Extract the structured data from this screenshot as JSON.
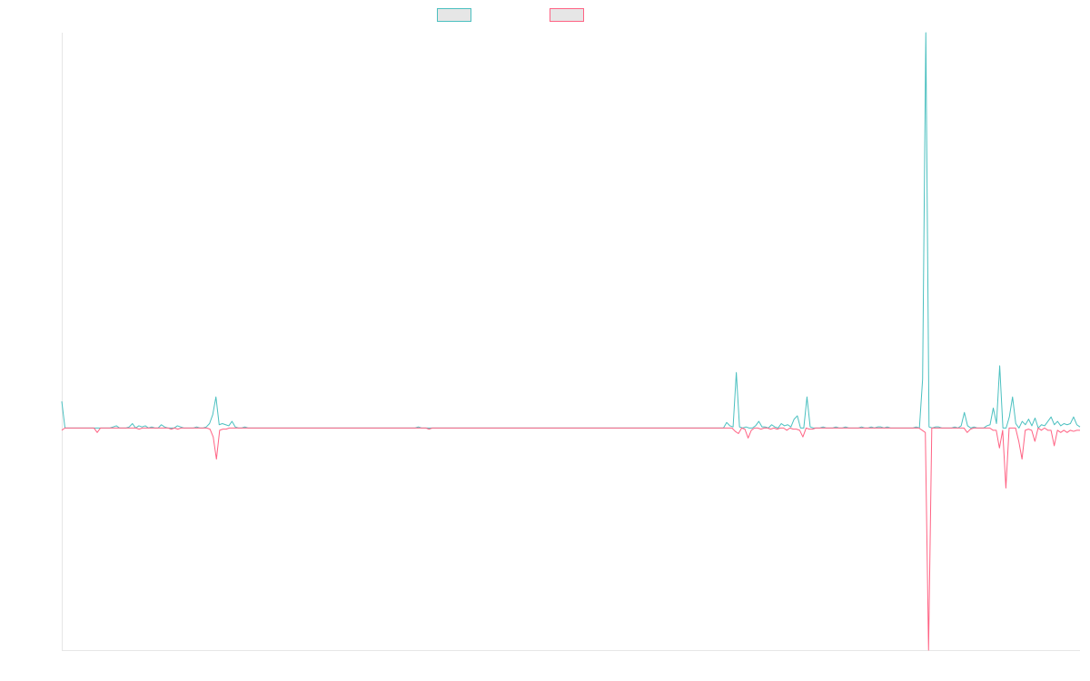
{
  "chart_data": {
    "type": "line",
    "title": "",
    "xlabel": "",
    "ylabel": "",
    "ylim": [
      -1,
      1.78
    ],
    "grid": false,
    "legend": "top",
    "series": [
      {
        "color": "#4bc0c0",
        "values": [
          0.12,
          0,
          0,
          0,
          0,
          0,
          0,
          0,
          0,
          0,
          0,
          0,
          0,
          0,
          0,
          0,
          0.005,
          0.01,
          0,
          0,
          0,
          0.005,
          0.02,
          0,
          0.01,
          0.005,
          0.01,
          0,
          0.005,
          0,
          0,
          0.015,
          0.005,
          0,
          0,
          0,
          0.01,
          0.005,
          0,
          0,
          0,
          0,
          0.005,
          0,
          0,
          0.005,
          0.02,
          0.06,
          0.14,
          0.015,
          0.02,
          0.015,
          0.01,
          0.03,
          0.005,
          0,
          0,
          0.005,
          0,
          0,
          0,
          0,
          0,
          0,
          0,
          0,
          0,
          0,
          0,
          0,
          0,
          0,
          0,
          0,
          0,
          0,
          0,
          0,
          0,
          0,
          0,
          0,
          0,
          0,
          0,
          0,
          0,
          0,
          0,
          0,
          0,
          0,
          0,
          0,
          0,
          0,
          0,
          0,
          0,
          0,
          0,
          0,
          0,
          0,
          0,
          0,
          0,
          0,
          0,
          0,
          0,
          0.005,
          0,
          0,
          0,
          0,
          0,
          0,
          0,
          0,
          0,
          0,
          0,
          0,
          0,
          0,
          0,
          0,
          0,
          0,
          0,
          0,
          0,
          0,
          0,
          0,
          0,
          0,
          0,
          0,
          0,
          0,
          0,
          0,
          0,
          0,
          0,
          0,
          0,
          0,
          0,
          0,
          0,
          0,
          0,
          0,
          0,
          0,
          0,
          0,
          0,
          0,
          0,
          0,
          0,
          0,
          0,
          0,
          0,
          0,
          0,
          0,
          0,
          0,
          0,
          0,
          0,
          0,
          0,
          0,
          0,
          0,
          0,
          0,
          0,
          0,
          0,
          0,
          0,
          0,
          0,
          0,
          0,
          0,
          0,
          0,
          0,
          0,
          0,
          0,
          0,
          0,
          0,
          0,
          0,
          0,
          0,
          0.025,
          0.01,
          0.005,
          0.25,
          0.005,
          0,
          0.005,
          0,
          0,
          0.01,
          0.03,
          0.005,
          0.005,
          0,
          0.015,
          0.005,
          0,
          0.02,
          0.01,
          0.015,
          0.005,
          0.04,
          0.055,
          0,
          0,
          0.14,
          0.005,
          0,
          0,
          0,
          0.005,
          0,
          0,
          0,
          0.005,
          0,
          0,
          0.005,
          0,
          0,
          0,
          0,
          0.005,
          0,
          0,
          0.005,
          0,
          0.005,
          0.005,
          0,
          0.005,
          0,
          0,
          0,
          0,
          0,
          0,
          0,
          0,
          0.005,
          0,
          0.22,
          1.78,
          0.005,
          0,
          0.005,
          0.005,
          0,
          0,
          0,
          0,
          0.005,
          0,
          0.01,
          0.07,
          0.01,
          0,
          0.005,
          0,
          0,
          0,
          0.01,
          0.015,
          0.09,
          0.02,
          0.28,
          0,
          0,
          0.05,
          0.14,
          0.02,
          0,
          0.03,
          0.015,
          0.04,
          0.01,
          0.045,
          0,
          0.015,
          0.01,
          0.03,
          0.05,
          0.015,
          0.03,
          0.01,
          0.02,
          0.015,
          0.02,
          0.05,
          0.015,
          0.005
        ]
      },
      {
        "color": "#ff6384",
        "values": [
          -0.01,
          0,
          0,
          0,
          0,
          0,
          0,
          0,
          0,
          0,
          0,
          -0.02,
          0,
          0,
          0,
          0,
          0,
          0,
          0,
          0,
          0,
          0,
          0,
          0,
          -0.005,
          0,
          0,
          0,
          0,
          0,
          0,
          0,
          0,
          0,
          -0.005,
          0,
          -0.005,
          0,
          0,
          0,
          0,
          0,
          0,
          0,
          0,
          0,
          -0.005,
          -0.04,
          -0.14,
          -0.01,
          -0.005,
          -0.005,
          0,
          0,
          0,
          0,
          0,
          0,
          0,
          0,
          0,
          0,
          0,
          0,
          0,
          0,
          0,
          0,
          0,
          0,
          0,
          0,
          0,
          0,
          0,
          0,
          0,
          0,
          0,
          0,
          0,
          0,
          0,
          0,
          0,
          0,
          0,
          0,
          0,
          0,
          0,
          0,
          0,
          0,
          0,
          0,
          0,
          0,
          0,
          0,
          0,
          0,
          0,
          0,
          0,
          0,
          0,
          0,
          0,
          0,
          0,
          0,
          0,
          0,
          -0.005,
          0,
          0,
          0,
          0,
          0,
          0,
          0,
          0,
          0,
          0,
          0,
          0,
          0,
          0,
          0,
          0,
          0,
          0,
          0,
          0,
          0,
          0,
          0,
          0,
          0,
          0,
          0,
          0,
          0,
          0,
          0,
          0,
          0,
          0,
          0,
          0,
          0,
          0,
          0,
          0,
          0,
          0,
          0,
          0,
          0,
          0,
          0,
          0,
          0,
          0,
          0,
          0,
          0,
          0,
          0,
          0,
          0,
          0,
          0,
          0,
          0,
          0,
          0,
          0,
          0,
          0,
          0,
          0,
          0,
          0,
          0,
          0,
          0,
          0,
          0,
          0,
          0,
          0,
          0,
          0,
          0,
          0,
          0,
          0,
          0,
          0,
          0,
          0,
          0,
          0,
          0,
          0,
          0,
          0,
          -0.015,
          -0.025,
          0,
          -0.005,
          -0.045,
          -0.01,
          0,
          0,
          -0.005,
          0,
          0,
          -0.005,
          0,
          -0.005,
          0,
          0,
          -0.01,
          0,
          -0.005,
          -0.005,
          -0.01,
          -0.04,
          0,
          -0.005,
          -0.005,
          0,
          0,
          0,
          0,
          0,
          0,
          0,
          0,
          0,
          0,
          0,
          0,
          0,
          0,
          0,
          0,
          0,
          0,
          0,
          0,
          0,
          0,
          0,
          0,
          0,
          0,
          0,
          0,
          0,
          0,
          0,
          0,
          0,
          -0.01,
          -0.02,
          -1.0,
          0,
          0,
          0,
          0,
          0,
          0,
          0,
          0,
          0,
          0,
          0,
          -0.02,
          -0.005,
          0,
          0,
          0,
          0,
          0,
          0,
          -0.01,
          -0.01,
          -0.09,
          -0.01,
          -0.27,
          0,
          0,
          0,
          -0.06,
          -0.14,
          -0.01,
          -0.005,
          -0.01,
          -0.06,
          0,
          -0.01,
          0,
          -0.01,
          -0.01,
          -0.08,
          -0.01,
          -0.02,
          -0.01,
          -0.02,
          -0.01,
          -0.015,
          -0.01,
          -0.01
        ]
      }
    ]
  }
}
